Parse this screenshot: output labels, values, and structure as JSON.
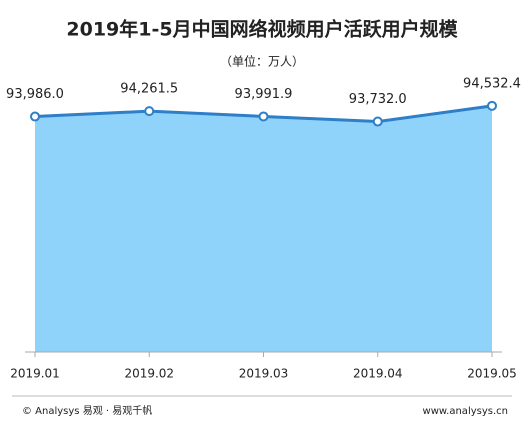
{
  "chart_data": {
    "type": "area",
    "title": "2019年1-5月中国网络视频用户活跃用户规模",
    "subtitle": "（单位：万人）",
    "categories": [
      "2019.01",
      "2019.02",
      "2019.03",
      "2019.04",
      "2019.05"
    ],
    "values": [
      93986.0,
      94261.5,
      93991.9,
      93732.0,
      94532.4
    ],
    "value_labels": [
      "93,986.0",
      "94,261.5",
      "93,991.9",
      "93,732.0",
      "94,532.4"
    ],
    "color": "#2e7fc7",
    "fill": "#8fd3fb",
    "ylim": [
      82000,
      96000
    ],
    "footer_left": "© Analysys 易观 · 易观千帆",
    "footer_right": "www.analysys.cn"
  }
}
